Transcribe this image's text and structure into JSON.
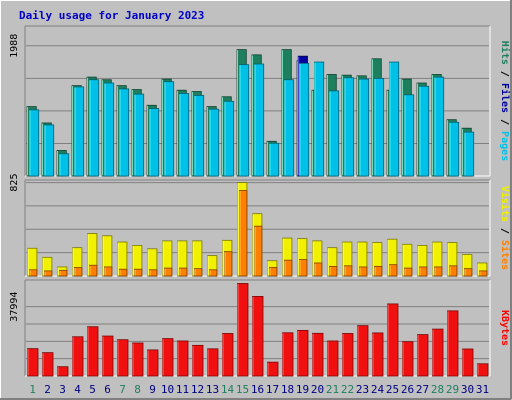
{
  "chart_data": [
    {
      "type": "bar",
      "title": "Daily usage for January 2023",
      "ylabel_parts": [
        {
          "text": "Pages",
          "color": "#00c0e8"
        },
        {
          "text": " / ",
          "color": "#000000"
        },
        {
          "text": "Files",
          "color": "#0000a0"
        },
        {
          "text": " / ",
          "color": "#000000"
        },
        {
          "text": "Hits",
          "color": "#1e7f5e"
        }
      ],
      "y_tick_label": "1988",
      "y_tick_value": 1988,
      "ylim": [
        0,
        2260
      ],
      "categories": [
        "1",
        "2",
        "3",
        "4",
        "5",
        "6",
        "7",
        "8",
        "9",
        "10",
        "11",
        "12",
        "13",
        "14",
        "15",
        "16",
        "17",
        "18",
        "19",
        "20",
        "21",
        "22",
        "23",
        "24",
        "25",
        "26",
        "27",
        "28",
        "29",
        "30",
        "31"
      ],
      "series": [
        {
          "name": "Hits",
          "color": "#1e7f5e",
          "values": [
            1060,
            810,
            390,
            1380,
            1510,
            1470,
            1380,
            1320,
            1080,
            1480,
            1310,
            1290,
            1060,
            1210,
            1930,
            1850,
            530,
            1930,
            1760,
            1310,
            1550,
            1540,
            1530,
            1790,
            1310,
            1480,
            1420,
            1550,
            860,
            730,
            0
          ]
        },
        {
          "name": "Files",
          "color": "#0000a0",
          "values": [
            0,
            0,
            0,
            0,
            0,
            0,
            0,
            0,
            0,
            0,
            0,
            0,
            0,
            0,
            0,
            0,
            0,
            0,
            1830,
            0,
            0,
            0,
            0,
            0,
            0,
            0,
            0,
            0,
            0,
            0,
            0
          ]
        },
        {
          "name": "Pages",
          "color": "#00c0e8",
          "values": [
            1010,
            780,
            340,
            1360,
            1470,
            1420,
            1330,
            1250,
            1030,
            1440,
            1260,
            1230,
            1020,
            1140,
            1700,
            1710,
            500,
            1470,
            1720,
            1740,
            1300,
            1500,
            1480,
            1490,
            1740,
            1240,
            1370,
            1510,
            820,
            670,
            0
          ]
        }
      ]
    },
    {
      "type": "bar",
      "ylabel_parts": [
        {
          "text": "Sites",
          "color": "#ff8000"
        },
        {
          "text": " / ",
          "color": "#000000"
        },
        {
          "text": "Visits",
          "color": "#f0f000"
        }
      ],
      "y_tick_label": "825",
      "y_tick_value": 825,
      "ylim": [
        0,
        830
      ],
      "categories": [
        "1",
        "2",
        "3",
        "4",
        "5",
        "6",
        "7",
        "8",
        "9",
        "10",
        "11",
        "12",
        "13",
        "14",
        "15",
        "16",
        "17",
        "18",
        "19",
        "20",
        "21",
        "22",
        "23",
        "24",
        "25",
        "26",
        "27",
        "28",
        "29",
        "30",
        "31"
      ],
      "series": [
        {
          "name": "Visits",
          "color": "#f0f000",
          "values": [
            245,
            165,
            80,
            250,
            375,
            355,
            300,
            270,
            240,
            310,
            310,
            310,
            180,
            315,
            825,
            550,
            135,
            335,
            330,
            310,
            250,
            300,
            300,
            295,
            325,
            280,
            270,
            300,
            295,
            190,
            115
          ]
        },
        {
          "name": "Sites",
          "color": "#ff8000",
          "values": [
            55,
            45,
            50,
            75,
            95,
            80,
            60,
            60,
            55,
            70,
            70,
            65,
            55,
            215,
            755,
            440,
            75,
            140,
            145,
            115,
            85,
            90,
            80,
            85,
            100,
            70,
            80,
            80,
            90,
            65,
            45
          ]
        }
      ]
    },
    {
      "type": "bar",
      "ylabel_parts": [
        {
          "text": "KBytes",
          "color": "#ff0000"
        }
      ],
      "y_tick_label": "37994",
      "y_tick_value": 37994,
      "ylim": [
        0,
        51500
      ],
      "categories": [
        "1",
        "2",
        "3",
        "4",
        "5",
        "6",
        "7",
        "8",
        "9",
        "10",
        "11",
        "12",
        "13",
        "14",
        "15",
        "16",
        "17",
        "18",
        "19",
        "20",
        "21",
        "22",
        "23",
        "24",
        "25",
        "26",
        "27",
        "28",
        "29",
        "30",
        "31"
      ],
      "series": [
        {
          "name": "KBytes",
          "color": "#f01010",
          "values": [
            15000,
            12800,
            5100,
            21500,
            27000,
            21900,
            19900,
            18100,
            14300,
            20500,
            19200,
            16800,
            14900,
            23300,
            50700,
            43600,
            7600,
            23700,
            25000,
            23400,
            19200,
            23300,
            27600,
            23600,
            39500,
            18800,
            22700,
            25700,
            35700,
            14800,
            6700
          ]
        }
      ]
    }
  ],
  "x_label_colors": {
    "weekday": "#000080",
    "weekend": "#1e7f5e"
  },
  "weekend_days": [
    1,
    7,
    8,
    14,
    15,
    21,
    22,
    28,
    29
  ]
}
